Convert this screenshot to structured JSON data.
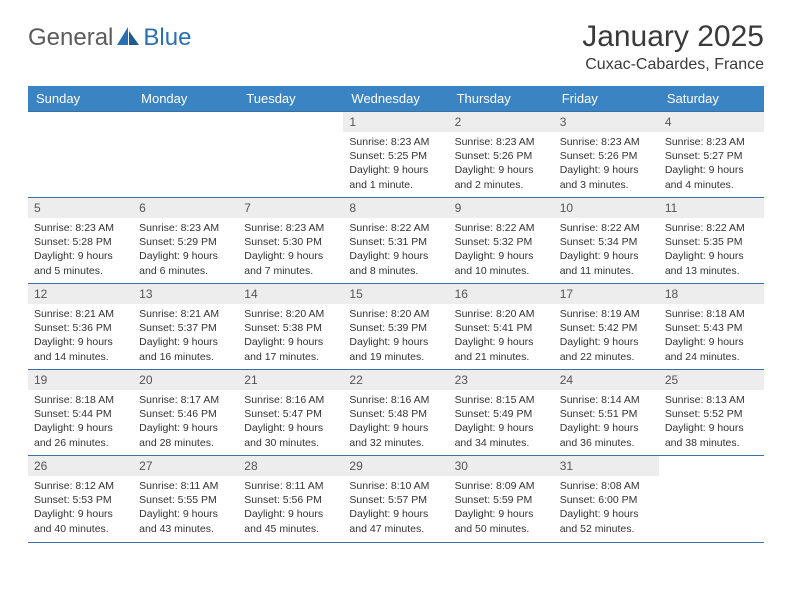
{
  "brand": {
    "general": "General",
    "blue": "Blue"
  },
  "title": "January 2025",
  "location": "Cuxac-Cabardes, France",
  "header_bg": "#3b84c4",
  "border_color": "#3b6fa0",
  "daynum_bg": "#ededed",
  "text_color": "#333333",
  "days": [
    "Sunday",
    "Monday",
    "Tuesday",
    "Wednesday",
    "Thursday",
    "Friday",
    "Saturday"
  ],
  "weeks": [
    [
      null,
      null,
      null,
      {
        "n": "1",
        "sr": "8:23 AM",
        "ss": "5:25 PM",
        "dl": "9 hours and 1 minute."
      },
      {
        "n": "2",
        "sr": "8:23 AM",
        "ss": "5:26 PM",
        "dl": "9 hours and 2 minutes."
      },
      {
        "n": "3",
        "sr": "8:23 AM",
        "ss": "5:26 PM",
        "dl": "9 hours and 3 minutes."
      },
      {
        "n": "4",
        "sr": "8:23 AM",
        "ss": "5:27 PM",
        "dl": "9 hours and 4 minutes."
      }
    ],
    [
      {
        "n": "5",
        "sr": "8:23 AM",
        "ss": "5:28 PM",
        "dl": "9 hours and 5 minutes."
      },
      {
        "n": "6",
        "sr": "8:23 AM",
        "ss": "5:29 PM",
        "dl": "9 hours and 6 minutes."
      },
      {
        "n": "7",
        "sr": "8:23 AM",
        "ss": "5:30 PM",
        "dl": "9 hours and 7 minutes."
      },
      {
        "n": "8",
        "sr": "8:22 AM",
        "ss": "5:31 PM",
        "dl": "9 hours and 8 minutes."
      },
      {
        "n": "9",
        "sr": "8:22 AM",
        "ss": "5:32 PM",
        "dl": "9 hours and 10 minutes."
      },
      {
        "n": "10",
        "sr": "8:22 AM",
        "ss": "5:34 PM",
        "dl": "9 hours and 11 minutes."
      },
      {
        "n": "11",
        "sr": "8:22 AM",
        "ss": "5:35 PM",
        "dl": "9 hours and 13 minutes."
      }
    ],
    [
      {
        "n": "12",
        "sr": "8:21 AM",
        "ss": "5:36 PM",
        "dl": "9 hours and 14 minutes."
      },
      {
        "n": "13",
        "sr": "8:21 AM",
        "ss": "5:37 PM",
        "dl": "9 hours and 16 minutes."
      },
      {
        "n": "14",
        "sr": "8:20 AM",
        "ss": "5:38 PM",
        "dl": "9 hours and 17 minutes."
      },
      {
        "n": "15",
        "sr": "8:20 AM",
        "ss": "5:39 PM",
        "dl": "9 hours and 19 minutes."
      },
      {
        "n": "16",
        "sr": "8:20 AM",
        "ss": "5:41 PM",
        "dl": "9 hours and 21 minutes."
      },
      {
        "n": "17",
        "sr": "8:19 AM",
        "ss": "5:42 PM",
        "dl": "9 hours and 22 minutes."
      },
      {
        "n": "18",
        "sr": "8:18 AM",
        "ss": "5:43 PM",
        "dl": "9 hours and 24 minutes."
      }
    ],
    [
      {
        "n": "19",
        "sr": "8:18 AM",
        "ss": "5:44 PM",
        "dl": "9 hours and 26 minutes."
      },
      {
        "n": "20",
        "sr": "8:17 AM",
        "ss": "5:46 PM",
        "dl": "9 hours and 28 minutes."
      },
      {
        "n": "21",
        "sr": "8:16 AM",
        "ss": "5:47 PM",
        "dl": "9 hours and 30 minutes."
      },
      {
        "n": "22",
        "sr": "8:16 AM",
        "ss": "5:48 PM",
        "dl": "9 hours and 32 minutes."
      },
      {
        "n": "23",
        "sr": "8:15 AM",
        "ss": "5:49 PM",
        "dl": "9 hours and 34 minutes."
      },
      {
        "n": "24",
        "sr": "8:14 AM",
        "ss": "5:51 PM",
        "dl": "9 hours and 36 minutes."
      },
      {
        "n": "25",
        "sr": "8:13 AM",
        "ss": "5:52 PM",
        "dl": "9 hours and 38 minutes."
      }
    ],
    [
      {
        "n": "26",
        "sr": "8:12 AM",
        "ss": "5:53 PM",
        "dl": "9 hours and 40 minutes."
      },
      {
        "n": "27",
        "sr": "8:11 AM",
        "ss": "5:55 PM",
        "dl": "9 hours and 43 minutes."
      },
      {
        "n": "28",
        "sr": "8:11 AM",
        "ss": "5:56 PM",
        "dl": "9 hours and 45 minutes."
      },
      {
        "n": "29",
        "sr": "8:10 AM",
        "ss": "5:57 PM",
        "dl": "9 hours and 47 minutes."
      },
      {
        "n": "30",
        "sr": "8:09 AM",
        "ss": "5:59 PM",
        "dl": "9 hours and 50 minutes."
      },
      {
        "n": "31",
        "sr": "8:08 AM",
        "ss": "6:00 PM",
        "dl": "9 hours and 52 minutes."
      },
      null
    ]
  ],
  "labels": {
    "sunrise": "Sunrise: ",
    "sunset": "Sunset: ",
    "daylight": "Daylight: "
  }
}
